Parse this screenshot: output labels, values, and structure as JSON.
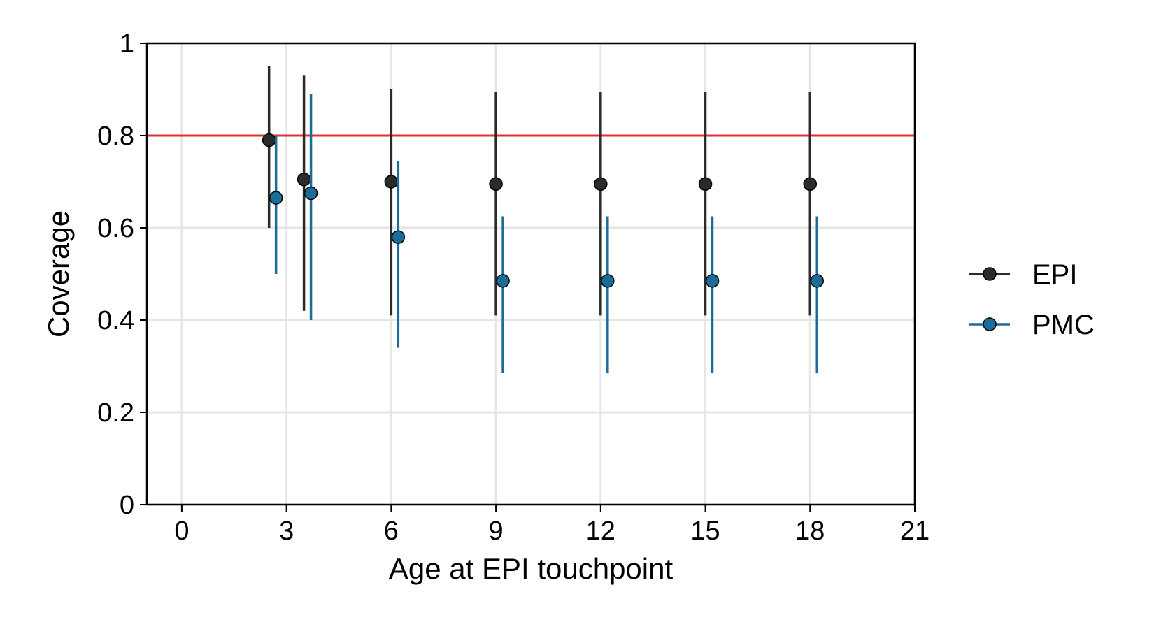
{
  "chart_data": {
    "type": "scatter",
    "xlabel": "Age at EPI touchpoint",
    "ylabel": "Coverage",
    "xlim": [
      -1,
      21
    ],
    "ylim": [
      0,
      1
    ],
    "x_ticks": [
      "0",
      "3",
      "6",
      "9",
      "12",
      "15",
      "18",
      "21"
    ],
    "y_ticks": [
      "0",
      "0.2",
      "0.4",
      "0.6",
      "0.8",
      "1"
    ],
    "grid": true,
    "legend_position": "right",
    "reference_line": {
      "y": 0.8,
      "color": "#e03030"
    },
    "series": [
      {
        "name": "EPI",
        "color": "#2b2b2b",
        "points": [
          {
            "x": 2.5,
            "y": 0.79,
            "lower": 0.6,
            "upper": 0.95
          },
          {
            "x": 3.5,
            "y": 0.705,
            "lower": 0.42,
            "upper": 0.93
          },
          {
            "x": 6,
            "y": 0.7,
            "lower": 0.41,
            "upper": 0.9
          },
          {
            "x": 9,
            "y": 0.695,
            "lower": 0.41,
            "upper": 0.895
          },
          {
            "x": 12,
            "y": 0.695,
            "lower": 0.41,
            "upper": 0.895
          },
          {
            "x": 15,
            "y": 0.695,
            "lower": 0.41,
            "upper": 0.895
          },
          {
            "x": 18,
            "y": 0.695,
            "lower": 0.41,
            "upper": 0.895
          }
        ]
      },
      {
        "name": "PMC",
        "color": "#1a6d99",
        "points": [
          {
            "x": 2.7,
            "y": 0.665,
            "lower": 0.5,
            "upper": 0.8
          },
          {
            "x": 3.7,
            "y": 0.675,
            "lower": 0.4,
            "upper": 0.89
          },
          {
            "x": 6.2,
            "y": 0.58,
            "lower": 0.34,
            "upper": 0.745
          },
          {
            "x": 9.2,
            "y": 0.485,
            "lower": 0.285,
            "upper": 0.625
          },
          {
            "x": 12.2,
            "y": 0.485,
            "lower": 0.285,
            "upper": 0.625
          },
          {
            "x": 15.2,
            "y": 0.485,
            "lower": 0.285,
            "upper": 0.625
          },
          {
            "x": 18.2,
            "y": 0.485,
            "lower": 0.285,
            "upper": 0.625
          }
        ]
      }
    ]
  }
}
